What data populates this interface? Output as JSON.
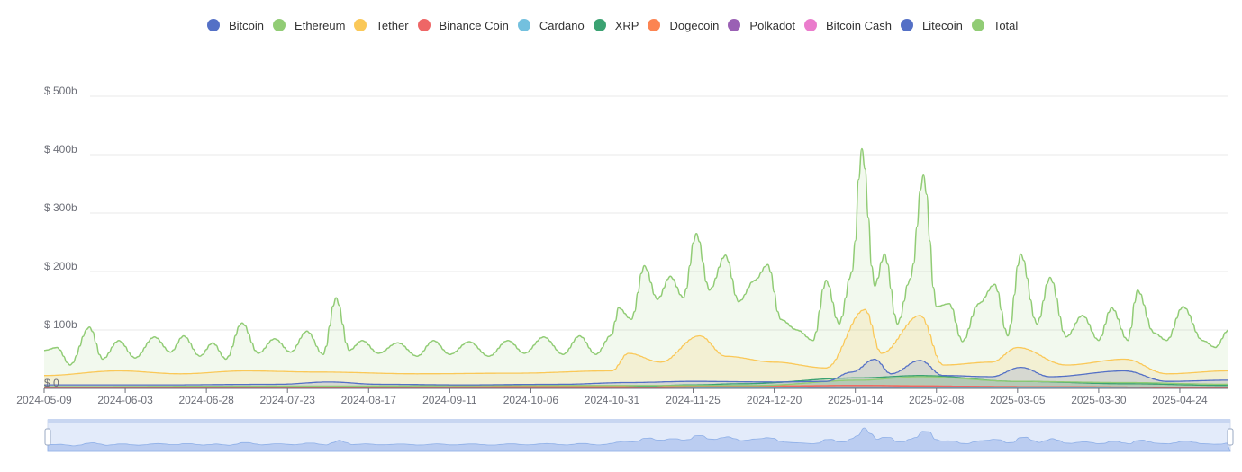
{
  "chart_data": {
    "type": "area",
    "title": "",
    "xlabel": "",
    "ylabel": "",
    "ylim": [
      0,
      500
    ],
    "y_unit": "billion USD",
    "y_ticks": [
      {
        "value": 0,
        "label": "$ 0"
      },
      {
        "value": 100,
        "label": "$ 100b"
      },
      {
        "value": 200,
        "label": "$ 200b"
      },
      {
        "value": 300,
        "label": "$ 300b"
      },
      {
        "value": 400,
        "label": "$ 400b"
      },
      {
        "value": 500,
        "label": "$ 500b"
      }
    ],
    "x_range": [
      "2024-05-09",
      "2025-05-09"
    ],
    "x_ticks": [
      "2024-05-09",
      "2024-06-03",
      "2024-06-28",
      "2024-07-23",
      "2024-08-17",
      "2024-09-11",
      "2024-10-06",
      "2024-10-31",
      "2024-11-25",
      "2024-12-20",
      "2025-01-14",
      "2025-02-08",
      "2025-03-05",
      "2025-03-30",
      "2025-04-24"
    ],
    "grid": "horizontal",
    "legend_position": "top-center",
    "data_zoom_slider": true,
    "series": [
      {
        "name": "Bitcoin",
        "color": "#5470c6",
        "values": [
          [
            "2024-05-09",
            6
          ],
          [
            "2024-06-15",
            6
          ],
          [
            "2024-07-20",
            7
          ],
          [
            "2024-08-05",
            11
          ],
          [
            "2024-08-20",
            7
          ],
          [
            "2024-09-15",
            6
          ],
          [
            "2024-10-15",
            7
          ],
          [
            "2024-11-05",
            10
          ],
          [
            "2024-11-25",
            12
          ],
          [
            "2024-12-20",
            11
          ],
          [
            "2025-01-05",
            12
          ],
          [
            "2025-01-13",
            28
          ],
          [
            "2025-01-20",
            50
          ],
          [
            "2025-01-25",
            25
          ],
          [
            "2025-02-03",
            48
          ],
          [
            "2025-02-10",
            22
          ],
          [
            "2025-02-25",
            20
          ],
          [
            "2025-03-06",
            36
          ],
          [
            "2025-03-15",
            20
          ],
          [
            "2025-04-07",
            30
          ],
          [
            "2025-04-20",
            12
          ],
          [
            "2025-05-09",
            14
          ]
        ]
      },
      {
        "name": "Ethereum",
        "color": "#91cc75",
        "values": [
          [
            "2024-05-09",
            3
          ],
          [
            "2024-08-01",
            4
          ],
          [
            "2024-11-01",
            5
          ],
          [
            "2024-12-15",
            5
          ],
          [
            "2025-01-15",
            14
          ],
          [
            "2025-02-03",
            20
          ],
          [
            "2025-03-05",
            12
          ],
          [
            "2025-04-07",
            10
          ],
          [
            "2025-05-09",
            7
          ]
        ]
      },
      {
        "name": "Tether",
        "color": "#fac858",
        "values": [
          [
            "2024-05-09",
            22
          ],
          [
            "2024-06-01",
            30
          ],
          [
            "2024-06-20",
            25
          ],
          [
            "2024-07-10",
            30
          ],
          [
            "2024-08-01",
            28
          ],
          [
            "2024-09-01",
            25
          ],
          [
            "2024-10-01",
            26
          ],
          [
            "2024-10-31",
            30
          ],
          [
            "2024-11-05",
            60
          ],
          [
            "2024-11-15",
            45
          ],
          [
            "2024-11-27",
            90
          ],
          [
            "2024-12-05",
            55
          ],
          [
            "2024-12-20",
            45
          ],
          [
            "2025-01-05",
            35
          ],
          [
            "2025-01-17",
            135
          ],
          [
            "2025-01-22",
            60
          ],
          [
            "2025-02-03",
            125
          ],
          [
            "2025-02-10",
            40
          ],
          [
            "2025-02-25",
            45
          ],
          [
            "2025-03-05",
            70
          ],
          [
            "2025-03-20",
            40
          ],
          [
            "2025-04-07",
            50
          ],
          [
            "2025-04-20",
            25
          ],
          [
            "2025-05-09",
            30
          ]
        ]
      },
      {
        "name": "Binance Coin",
        "color": "#ee6666",
        "values": [
          [
            "2024-05-09",
            1
          ],
          [
            "2024-11-01",
            1.5
          ],
          [
            "2024-12-15",
            3
          ],
          [
            "2025-01-15",
            5
          ],
          [
            "2025-02-03",
            4
          ],
          [
            "2025-03-05",
            3
          ],
          [
            "2025-05-09",
            1.5
          ]
        ]
      },
      {
        "name": "Cardano",
        "color": "#73c0de",
        "values": [
          [
            "2024-05-09",
            0.5
          ],
          [
            "2024-11-15",
            1.5
          ],
          [
            "2025-01-15",
            2
          ],
          [
            "2025-03-05",
            1.5
          ],
          [
            "2025-05-09",
            0.8
          ]
        ]
      },
      {
        "name": "XRP",
        "color": "#3ba272",
        "values": [
          [
            "2024-05-09",
            1
          ],
          [
            "2024-11-01",
            2
          ],
          [
            "2024-11-25",
            6
          ],
          [
            "2024-12-10",
            8
          ],
          [
            "2025-01-15",
            18
          ],
          [
            "2025-02-03",
            22
          ],
          [
            "2025-03-05",
            12
          ],
          [
            "2025-04-07",
            8
          ],
          [
            "2025-05-09",
            5
          ]
        ]
      },
      {
        "name": "Dogecoin",
        "color": "#fc8452",
        "values": [
          [
            "2024-05-09",
            1
          ],
          [
            "2024-11-10",
            3
          ],
          [
            "2024-12-10",
            4
          ],
          [
            "2025-01-15",
            5
          ],
          [
            "2025-03-05",
            3
          ],
          [
            "2025-05-09",
            1.5
          ]
        ]
      },
      {
        "name": "Polkadot",
        "color": "#9a60b4",
        "values": [
          [
            "2024-05-09",
            0.3
          ],
          [
            "2025-01-15",
            0.8
          ],
          [
            "2025-05-09",
            0.4
          ]
        ]
      },
      {
        "name": "Bitcoin Cash",
        "color": "#ea7ccc",
        "values": [
          [
            "2024-05-09",
            0.3
          ],
          [
            "2025-01-15",
            0.6
          ],
          [
            "2025-05-09",
            0.3
          ]
        ]
      },
      {
        "name": "Litecoin",
        "color": "#5470c6",
        "values": [
          [
            "2024-05-09",
            0.4
          ],
          [
            "2025-01-15",
            0.8
          ],
          [
            "2025-05-09",
            0.4
          ]
        ]
      },
      {
        "name": "Total",
        "color": "#91cc75",
        "values": [
          [
            "2024-05-09",
            65
          ],
          [
            "2024-05-13",
            70
          ],
          [
            "2024-05-17",
            40
          ],
          [
            "2024-05-23",
            105
          ],
          [
            "2024-05-27",
            50
          ],
          [
            "2024-06-01",
            82
          ],
          [
            "2024-06-06",
            52
          ],
          [
            "2024-06-12",
            88
          ],
          [
            "2024-06-17",
            62
          ],
          [
            "2024-06-21",
            90
          ],
          [
            "2024-06-26",
            55
          ],
          [
            "2024-06-30",
            78
          ],
          [
            "2024-07-04",
            50
          ],
          [
            "2024-07-09",
            112
          ],
          [
            "2024-07-14",
            60
          ],
          [
            "2024-07-19",
            85
          ],
          [
            "2024-07-24",
            62
          ],
          [
            "2024-07-29",
            98
          ],
          [
            "2024-08-03",
            58
          ],
          [
            "2024-08-07",
            155
          ],
          [
            "2024-08-11",
            65
          ],
          [
            "2024-08-15",
            82
          ],
          [
            "2024-08-20",
            60
          ],
          [
            "2024-08-26",
            78
          ],
          [
            "2024-09-01",
            55
          ],
          [
            "2024-09-06",
            82
          ],
          [
            "2024-09-11",
            58
          ],
          [
            "2024-09-17",
            80
          ],
          [
            "2024-09-23",
            55
          ],
          [
            "2024-09-29",
            82
          ],
          [
            "2024-10-04",
            60
          ],
          [
            "2024-10-10",
            88
          ],
          [
            "2024-10-16",
            58
          ],
          [
            "2024-10-21",
            90
          ],
          [
            "2024-10-26",
            58
          ],
          [
            "2024-10-31",
            92
          ],
          [
            "2024-11-02",
            138
          ],
          [
            "2024-11-06",
            118
          ],
          [
            "2024-11-10",
            210
          ],
          [
            "2024-11-14",
            152
          ],
          [
            "2024-11-18",
            192
          ],
          [
            "2024-11-22",
            155
          ],
          [
            "2024-11-26",
            265
          ],
          [
            "2024-11-30",
            168
          ],
          [
            "2024-12-05",
            228
          ],
          [
            "2024-12-09",
            148
          ],
          [
            "2024-12-14",
            185
          ],
          [
            "2024-12-18",
            212
          ],
          [
            "2024-12-22",
            118
          ],
          [
            "2024-12-27",
            100
          ],
          [
            "2025-01-01",
            82
          ],
          [
            "2025-01-05",
            185
          ],
          [
            "2025-01-09",
            110
          ],
          [
            "2025-01-13",
            200
          ],
          [
            "2025-01-16",
            410
          ],
          [
            "2025-01-20",
            175
          ],
          [
            "2025-01-23",
            230
          ],
          [
            "2025-01-27",
            110
          ],
          [
            "2025-01-31",
            188
          ],
          [
            "2025-02-04",
            365
          ],
          [
            "2025-02-08",
            140
          ],
          [
            "2025-02-12",
            145
          ],
          [
            "2025-02-16",
            80
          ],
          [
            "2025-02-21",
            145
          ],
          [
            "2025-02-26",
            178
          ],
          [
            "2025-03-02",
            90
          ],
          [
            "2025-03-06",
            230
          ],
          [
            "2025-03-11",
            110
          ],
          [
            "2025-03-15",
            190
          ],
          [
            "2025-03-20",
            88
          ],
          [
            "2025-03-25",
            125
          ],
          [
            "2025-03-30",
            82
          ],
          [
            "2025-04-03",
            138
          ],
          [
            "2025-04-08",
            82
          ],
          [
            "2025-04-11",
            168
          ],
          [
            "2025-04-16",
            95
          ],
          [
            "2025-04-20",
            82
          ],
          [
            "2025-04-25",
            140
          ],
          [
            "2025-05-01",
            82
          ],
          [
            "2025-05-05",
            70
          ],
          [
            "2025-05-09",
            100
          ]
        ]
      }
    ]
  }
}
